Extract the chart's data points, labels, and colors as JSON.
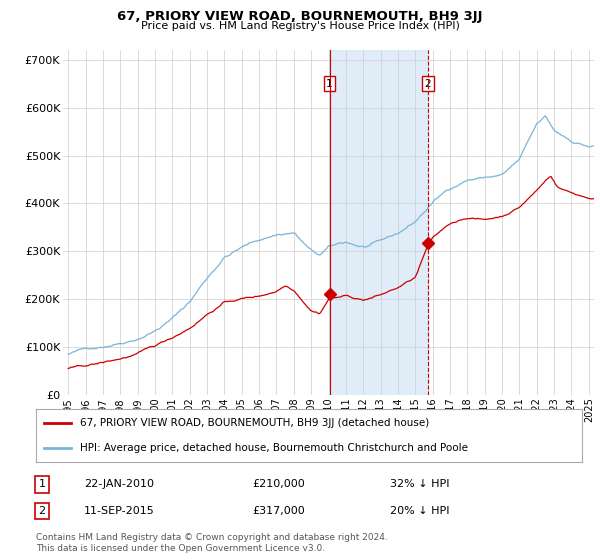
{
  "title": "67, PRIORY VIEW ROAD, BOURNEMOUTH, BH9 3JJ",
  "subtitle": "Price paid vs. HM Land Registry's House Price Index (HPI)",
  "ylabel_ticks": [
    "£0",
    "£100K",
    "£200K",
    "£300K",
    "£400K",
    "£500K",
    "£600K",
    "£700K"
  ],
  "ytick_values": [
    0,
    100000,
    200000,
    300000,
    400000,
    500000,
    600000,
    700000
  ],
  "ylim": [
    0,
    720000
  ],
  "xlim_start": 1994.7,
  "xlim_end": 2025.3,
  "hpi_color": "#7ab4d8",
  "price_color": "#cc0000",
  "sale1_date": 2010.06,
  "sale1_price": 210000,
  "sale1_label": "1",
  "sale2_date": 2015.72,
  "sale2_price": 317000,
  "sale2_label": "2",
  "shade_color": "#ddeaf7",
  "vline1_style": "-",
  "vline2_style": "--",
  "vline_color": "#cc0000",
  "background_color": "#ffffff",
  "grid_color": "#cccccc",
  "legend_line1": "67, PRIORY VIEW ROAD, BOURNEMOUTH, BH9 3JJ (detached house)",
  "legend_line2": "HPI: Average price, detached house, Bournemouth Christchurch and Poole",
  "note1_num": "1",
  "note1_date": "22-JAN-2010",
  "note1_price": "£210,000",
  "note1_hpi": "32% ↓ HPI",
  "note2_num": "2",
  "note2_date": "11-SEP-2015",
  "note2_price": "£317,000",
  "note2_hpi": "20% ↓ HPI",
  "footnote": "Contains HM Land Registry data © Crown copyright and database right 2024.\nThis data is licensed under the Open Government Licence v3.0.",
  "xtick_years": [
    1995,
    1996,
    1997,
    1998,
    1999,
    2000,
    2001,
    2002,
    2003,
    2004,
    2005,
    2006,
    2007,
    2008,
    2009,
    2010,
    2011,
    2012,
    2013,
    2014,
    2015,
    2016,
    2017,
    2018,
    2019,
    2020,
    2021,
    2022,
    2023,
    2024,
    2025
  ]
}
